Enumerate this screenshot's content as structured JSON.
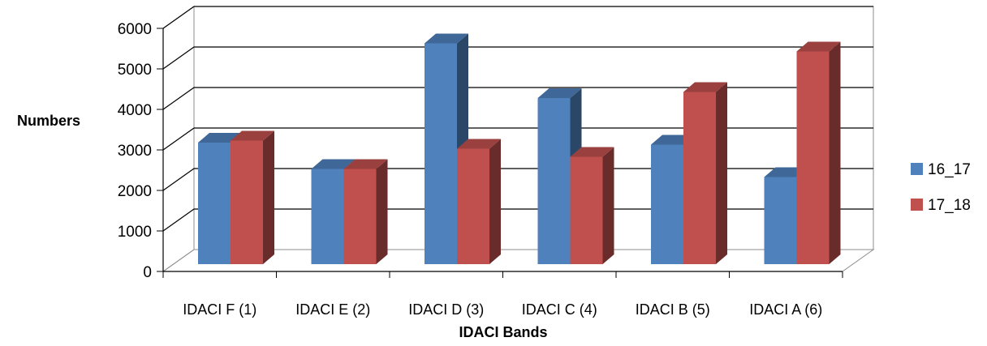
{
  "chart_data": {
    "type": "bar",
    "style": "3d-clustered-column",
    "categories": [
      "IDACI F (1)",
      "IDACI E (2)",
      "IDACI D (3)",
      "IDACI C (4)",
      "IDACI B (5)",
      "IDACI A (6)"
    ],
    "series": [
      {
        "name": "16_17",
        "color": "#4F81BD",
        "values": [
          3000,
          2350,
          5450,
          4100,
          2950,
          2150
        ]
      },
      {
        "name": "17_18",
        "color": "#C0504D",
        "values": [
          3050,
          2350,
          2850,
          2650,
          4250,
          5250
        ]
      }
    ],
    "xlabel": "IDACI Bands",
    "ylabel": "Numbers",
    "ylim": [
      0,
      6000
    ],
    "yticks": [
      "0",
      "1000",
      "2000",
      "3000",
      "4000",
      "5000",
      "6000"
    ],
    "grid": true,
    "legend": "right"
  }
}
